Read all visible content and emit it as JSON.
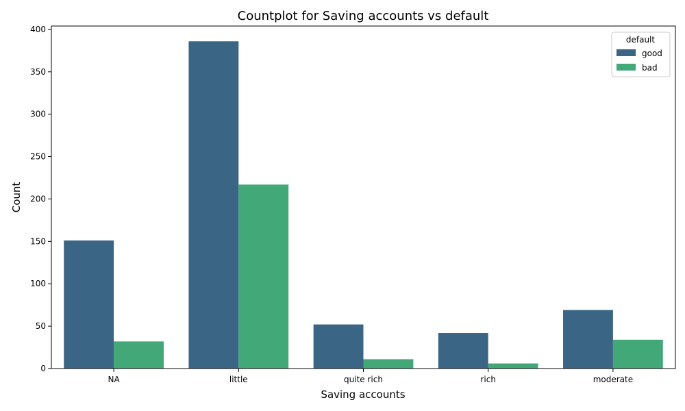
{
  "chart_data": {
    "type": "bar",
    "title": "Countplot for Saving accounts vs default",
    "xlabel": "Saving accounts",
    "ylabel": "Count",
    "categories": [
      "NA",
      "little",
      "quite rich",
      "rich",
      "moderate"
    ],
    "series": [
      {
        "name": "good",
        "color": "#3b6584",
        "values": [
          151,
          386,
          52,
          42,
          69
        ]
      },
      {
        "name": "bad",
        "color": "#43a878",
        "values": [
          32,
          217,
          11,
          6,
          34
        ]
      }
    ],
    "ylim": [
      0,
      404
    ],
    "yticks": [
      0,
      50,
      100,
      150,
      200,
      250,
      300,
      350,
      400
    ],
    "grid": false,
    "legend": {
      "title": "default",
      "placement": "top-right"
    }
  }
}
